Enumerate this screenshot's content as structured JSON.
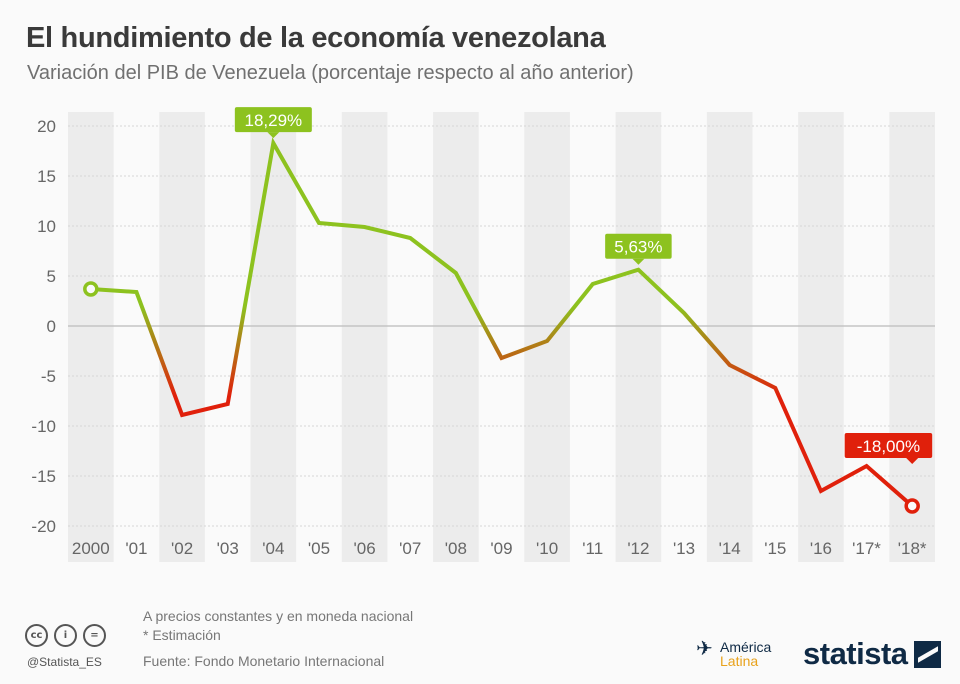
{
  "title": "El hundimiento de la economía venezolana",
  "subtitle": "Variación del PIB de Venezuela (porcentaje respecto al año anterior)",
  "chart_data": {
    "type": "line",
    "categories": [
      "2000",
      "'01",
      "'02",
      "'03",
      "'04",
      "'05",
      "'06",
      "'07",
      "'08",
      "'09",
      "'10",
      "'11",
      "'12",
      "'13",
      "'14",
      "'15",
      "'16",
      "'17*",
      "'18*"
    ],
    "values": [
      3.7,
      3.4,
      -8.9,
      -7.8,
      18.29,
      10.3,
      9.9,
      8.8,
      5.3,
      -3.2,
      -1.5,
      4.2,
      5.63,
      1.3,
      -3.9,
      -6.2,
      -16.5,
      -14.0,
      -18.0
    ],
    "ylim": [
      -20,
      20
    ],
    "yticks": [
      "20",
      "15",
      "10",
      "5",
      "0",
      "-5",
      "-10",
      "-15",
      "-20"
    ],
    "grid": true,
    "annotations": [
      {
        "index": 4,
        "text": "18,29%",
        "color": "#8dc21f"
      },
      {
        "index": 12,
        "text": "5,63%",
        "color": "#8dc21f"
      },
      {
        "index": 18,
        "text": "-18,00%",
        "color": "#e0200b"
      }
    ],
    "colors": {
      "positive": "#8dc21f",
      "negative": "#e0200b"
    }
  },
  "footer": {
    "note1": "A precios constantes y en moneda nacional",
    "note2": "* Estimación",
    "source": "Fuente: Fondo Monetario Internacional",
    "handle": "@Statista_ES",
    "cc": [
      "cc",
      "i",
      "="
    ],
    "america": "América",
    "latina": "Latina",
    "brand": "statista"
  }
}
